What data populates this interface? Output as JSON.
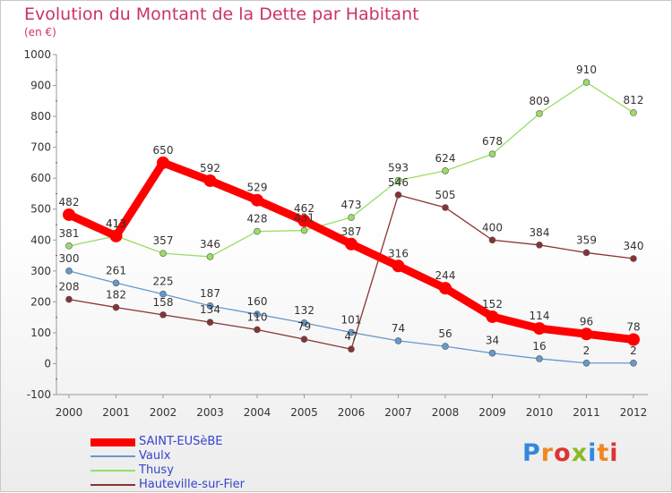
{
  "chart_data": {
    "type": "line",
    "title": "Evolution du Montant de la Dette par Habitant",
    "subtitle": "(en €)",
    "xlabel": "",
    "ylabel": "",
    "x": [
      "2000",
      "2001",
      "2002",
      "2003",
      "2004",
      "2005",
      "2006",
      "2007",
      "2008",
      "2009",
      "2010",
      "2011",
      "2012"
    ],
    "ylim": [
      -100,
      1000
    ],
    "yticks": [
      -100,
      0,
      100,
      200,
      300,
      400,
      500,
      600,
      700,
      800,
      900,
      1000
    ],
    "grid": false,
    "legend_position": "bottom-left",
    "series": [
      {
        "name": "SAINT-EUSèBE",
        "color": "#ff0000",
        "values": [
          482,
          413,
          650,
          592,
          529,
          462,
          387,
          316,
          244,
          152,
          114,
          96,
          78
        ]
      },
      {
        "name": "Vaulx",
        "color": "#6699cc",
        "values": [
          300,
          261,
          225,
          187,
          160,
          132,
          101,
          74,
          56,
          34,
          16,
          2,
          2
        ]
      },
      {
        "name": "Thusy",
        "color": "#99dd66",
        "values": [
          381,
          413,
          357,
          346,
          428,
          431,
          473,
          593,
          624,
          678,
          809,
          910,
          812
        ]
      },
      {
        "name": "Hauteville-sur-Fier",
        "color": "#883333",
        "values": [
          208,
          182,
          158,
          134,
          110,
          79,
          47,
          546,
          505,
          400,
          384,
          359,
          340
        ]
      }
    ]
  },
  "logo": {
    "text": "Proxiti",
    "letters": [
      {
        "ch": "P",
        "color": "#3388dd"
      },
      {
        "ch": "r",
        "color": "#ee8822"
      },
      {
        "ch": "o",
        "color": "#dd3333"
      },
      {
        "ch": "x",
        "color": "#88bb22"
      },
      {
        "ch": "i",
        "color": "#3388dd"
      },
      {
        "ch": "t",
        "color": "#ee8822"
      },
      {
        "ch": "i",
        "color": "#dd3333"
      }
    ]
  }
}
